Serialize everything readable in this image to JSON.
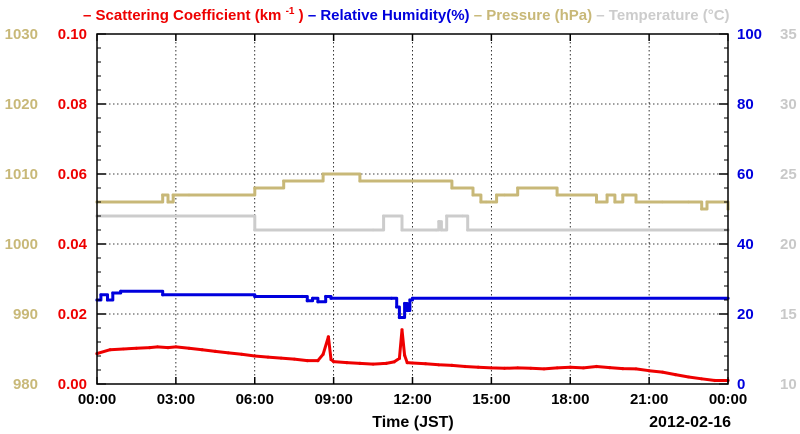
{
  "chart_data": {
    "type": "line",
    "title": "",
    "xlabel": "Time (JST)",
    "date_label": "2012-02-16",
    "x_ticks": [
      "00:00",
      "03:00",
      "06:00",
      "09:00",
      "12:00",
      "15:00",
      "18:00",
      "21:00",
      "00:00"
    ],
    "x_range_hours": [
      0,
      24
    ],
    "grid": true,
    "legend_position": "top",
    "legend": [
      {
        "label": "Scattering Coefficient (km",
        "sup": "-1",
        "after": ")",
        "color": "#ee0000"
      },
      {
        "label": "Relative Humidity(%)",
        "color": "#0000dd"
      },
      {
        "label": "Pressure (hPa)",
        "color": "#c8b878"
      },
      {
        "label": "Temperature (°C)",
        "color": "#cccccc"
      }
    ],
    "axes": {
      "pressure": {
        "side": "left-outer",
        "color": "#c8b878",
        "range": [
          980,
          1030
        ],
        "ticks": [
          "980",
          "990",
          "1000",
          "1010",
          "1020",
          "1030"
        ]
      },
      "scattering": {
        "side": "left-inner",
        "color": "#ee0000",
        "range": [
          0,
          0.1
        ],
        "ticks": [
          "0.00",
          "0.02",
          "0.04",
          "0.06",
          "0.08",
          "0.10"
        ]
      },
      "humidity": {
        "side": "right-inner",
        "color": "#0000dd",
        "range": [
          0,
          100
        ],
        "ticks": [
          "0",
          "20",
          "40",
          "60",
          "80",
          "100"
        ]
      },
      "temperature": {
        "side": "right-outer",
        "color": "#c8c8c8",
        "range": [
          10,
          35
        ],
        "ticks": [
          "10",
          "15",
          "20",
          "25",
          "30",
          "35"
        ]
      }
    },
    "series": [
      {
        "name": "Scattering Coefficient (km-1)",
        "axis": "scattering",
        "color": "#ee0000",
        "step": false,
        "x": [
          0,
          0.5,
          1,
          1.5,
          2,
          2.3,
          2.7,
          3,
          3.5,
          4,
          4.5,
          5,
          5.5,
          6,
          6.5,
          7,
          7.5,
          8,
          8.4,
          8.6,
          8.8,
          8.9,
          9,
          9.5,
          10,
          10.5,
          11,
          11.3,
          11.5,
          11.6,
          11.7,
          11.8,
          12,
          12.5,
          13,
          13.5,
          14,
          14.5,
          15,
          15.5,
          16,
          16.5,
          17,
          17.5,
          18,
          18.5,
          19,
          19.5,
          20,
          20.5,
          21,
          21.5,
          22,
          22.5,
          23,
          23.5,
          24
        ],
        "y": [
          0.0087,
          0.0098,
          0.01,
          0.0102,
          0.0104,
          0.0106,
          0.0104,
          0.0106,
          0.0102,
          0.0098,
          0.0093,
          0.0089,
          0.0085,
          0.008,
          0.0077,
          0.0074,
          0.0071,
          0.0067,
          0.0067,
          0.0085,
          0.0135,
          0.007,
          0.0064,
          0.0061,
          0.0059,
          0.0057,
          0.0059,
          0.0063,
          0.0073,
          0.0155,
          0.0082,
          0.0061,
          0.006,
          0.0058,
          0.0055,
          0.0053,
          0.005,
          0.0048,
          0.0046,
          0.0045,
          0.0046,
          0.0045,
          0.0043,
          0.0046,
          0.0048,
          0.0046,
          0.005,
          0.0047,
          0.0044,
          0.0043,
          0.0038,
          0.0034,
          0.0027,
          0.002,
          0.0015,
          0.001,
          0.001
        ]
      },
      {
        "name": "Relative Humidity(%)",
        "axis": "humidity",
        "color": "#0000dd",
        "step": true,
        "x": [
          0,
          0.15,
          0.4,
          0.6,
          0.9,
          2.5,
          6,
          7.8,
          8.0,
          8.2,
          8.4,
          8.7,
          8.9,
          11.2,
          11.4,
          11.5,
          11.7,
          11.8,
          11.9,
          12,
          24
        ],
        "y": [
          24,
          25.5,
          24,
          26,
          26.5,
          25.5,
          25,
          25,
          23.8,
          24.5,
          23.5,
          25,
          24.5,
          24.5,
          22,
          19,
          23,
          21,
          24,
          24.5,
          24.5
        ]
      },
      {
        "name": "Pressure (hPa)",
        "axis": "pressure",
        "color": "#c8b878",
        "step": true,
        "x": [
          0,
          2.5,
          2.7,
          2.9,
          3.5,
          6,
          7.1,
          8.6,
          10,
          12,
          13.5,
          14.3,
          14.6,
          14.8,
          15.2,
          15.5,
          16,
          17.5,
          19,
          19.4,
          19.7,
          20,
          20.5,
          21,
          21.5,
          22.5,
          23,
          23.2,
          24
        ],
        "y": [
          1006,
          1007,
          1006,
          1007,
          1007,
          1008,
          1009,
          1010,
          1009,
          1009,
          1008,
          1007,
          1006,
          1006,
          1007,
          1007,
          1008,
          1007,
          1006,
          1007,
          1006,
          1007,
          1006,
          1006,
          1006,
          1006,
          1005,
          1006,
          1005
        ]
      },
      {
        "name": "Temperature (°C)",
        "axis": "temperature",
        "color": "#cccccc",
        "step": true,
        "x": [
          0,
          6,
          10.5,
          10.9,
          11.6,
          12.9,
          13,
          13.1,
          13.3,
          13.9,
          14.1,
          24
        ],
        "y": [
          22,
          21,
          21,
          22,
          21,
          21,
          21.6,
          21,
          22,
          22,
          21,
          21
        ]
      }
    ]
  }
}
